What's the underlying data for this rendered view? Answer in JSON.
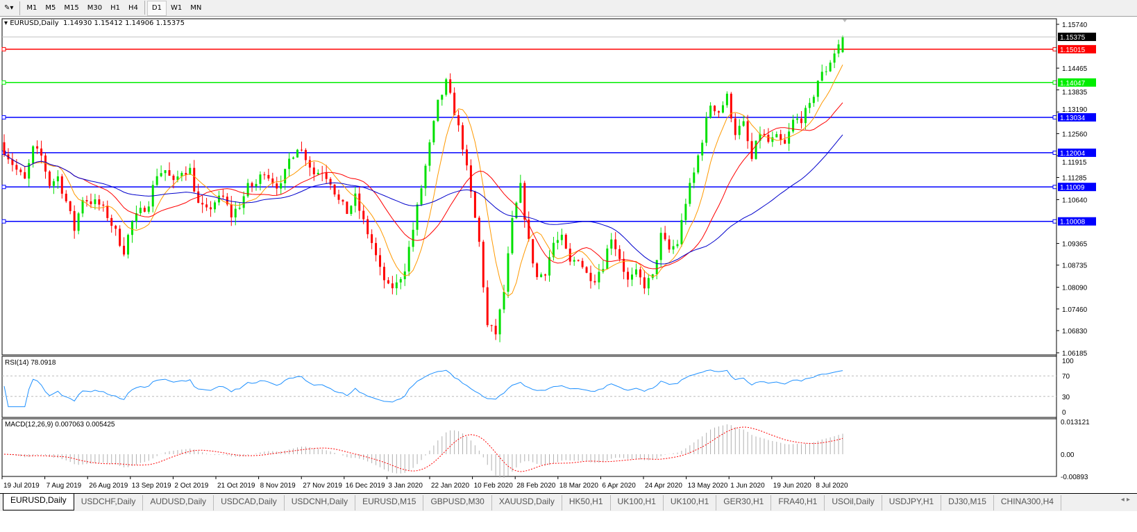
{
  "toolbar": {
    "timeframes": [
      "M1",
      "M5",
      "M15",
      "M30",
      "H1",
      "H4",
      "D1",
      "W1",
      "MN"
    ],
    "active": "D1"
  },
  "chart": {
    "symbol_title": "EURUSD,Daily",
    "ohlc": "1.14930 1.15412 1.14906 1.15375"
  },
  "colors": {
    "bull": "#00e000",
    "bear": "#ff0000",
    "ma_fast": "#ff9900",
    "ma_mid": "#ff0000",
    "ma_slow": "#0000cc",
    "rsi": "#1e90ff",
    "macd_signal": "#ff0000",
    "macd_hist": "#b0b0b0"
  },
  "chart_data": [
    {
      "type": "candlestick",
      "title": "EURUSD,Daily",
      "y_ticks": [
        "1.15740",
        "1.14465",
        "1.13835",
        "1.13190",
        "1.12560",
        "1.11915",
        "1.11285",
        "1.10640",
        "1.09365",
        "1.08735",
        "1.08090",
        "1.07460",
        "1.06830",
        "1.06185"
      ],
      "ylim": [
        1.06185,
        1.1574
      ],
      "x_ticks": [
        "19 Jul 2019",
        "7 Aug 2019",
        "26 Aug 2019",
        "13 Sep 2019",
        "2 Oct 2019",
        "21 Oct 2019",
        "8 Nov 2019",
        "27 Nov 2019",
        "16 Dec 2019",
        "3 Jan 2020",
        "22 Jan 2020",
        "10 Feb 2020",
        "28 Feb 2020",
        "18 Mar 2020",
        "6 Apr 2020",
        "24 Apr 2020",
        "13 May 2020",
        "1 Jun 2020",
        "19 Jun 2020",
        "8 Jul 2020"
      ],
      "approx_closes": [
        1.1231,
        1.119,
        1.115,
        1.1119,
        1.121,
        1.119,
        1.1109,
        1.113,
        1.1059,
        1.0978,
        1.1069,
        1.1059,
        1.1049,
        1.1018,
        1.0968,
        1.0917,
        1.0998,
        1.1028,
        1.1059,
        1.114,
        1.115,
        1.1109,
        1.115,
        1.115,
        1.1049,
        1.1028,
        1.1059,
        1.1069,
        1.1018,
        1.1049,
        1.1099,
        1.1109,
        1.115,
        1.1119,
        1.1099,
        1.118,
        1.1221,
        1.119,
        1.114,
        1.115,
        1.1119,
        1.1059,
        1.1028,
        1.1069,
        1.0998,
        1.0938,
        1.0857,
        1.0806,
        1.0816,
        1.0867,
        1.0978,
        1.1099,
        1.1221,
        1.1342,
        1.1402,
        1.1321,
        1.1221,
        1.1079,
        1.0938,
        1.0695,
        1.0675,
        1.0796,
        1.0998,
        1.1099,
        1.0938,
        1.0837,
        1.0857,
        1.0938,
        1.0948,
        1.0877,
        1.0897,
        1.0847,
        1.0837,
        1.0877,
        1.0958,
        1.0897,
        1.0826,
        1.0847,
        1.0816,
        1.0837,
        1.0958,
        1.0917,
        1.0938,
        1.1059,
        1.114,
        1.1241,
        1.1342,
        1.1321,
        1.1362,
        1.1261,
        1.1281,
        1.118,
        1.1261,
        1.1231,
        1.1241,
        1.1221,
        1.1291,
        1.1301,
        1.1332,
        1.1412,
        1.1443,
        1.1493,
        1.1538
      ],
      "last_price": "1.15375",
      "hlines": [
        {
          "price": "1.15015",
          "color": "#ff0000"
        },
        {
          "price": "1.14047",
          "color": "#00ee00"
        },
        {
          "price": "1.13034",
          "color": "#0000ff"
        },
        {
          "price": "1.12004",
          "color": "#0000ff"
        },
        {
          "price": "1.11009",
          "color": "#0000ff"
        },
        {
          "price": "1.10008",
          "color": "#0000ff"
        }
      ]
    },
    {
      "type": "line",
      "title": "RSI(14) 78.0918",
      "y_ticks": [
        "100",
        "70",
        "30",
        "0"
      ],
      "ylim": [
        0,
        100
      ],
      "levels": [
        70,
        30
      ]
    },
    {
      "type": "bar",
      "title": "MACD(12,26,9) 0.007063 0.005425",
      "y_ticks": [
        "0.013121",
        "0.00",
        "-0.00893"
      ],
      "ylim": [
        -0.00893,
        0.013121
      ]
    }
  ],
  "tabs": [
    {
      "label": "EURUSD,Daily",
      "active": true
    },
    {
      "label": "USDCHF,Daily"
    },
    {
      "label": "AUDUSD,Daily"
    },
    {
      "label": "USDCAD,Daily"
    },
    {
      "label": "USDCNH,Daily"
    },
    {
      "label": "EURUSD,M15"
    },
    {
      "label": "GBPUSD,M30"
    },
    {
      "label": "XAUUSD,Daily"
    },
    {
      "label": "HK50,H1"
    },
    {
      "label": "UK100,H1"
    },
    {
      "label": "UK100,H1"
    },
    {
      "label": "GER30,H1"
    },
    {
      "label": "FRA40,H1"
    },
    {
      "label": "USOil,Daily"
    },
    {
      "label": "USDJPY,H1"
    },
    {
      "label": "DJ30,M15"
    },
    {
      "label": "CHINA300,H4"
    }
  ],
  "tab_scroll": "◂ ▸"
}
